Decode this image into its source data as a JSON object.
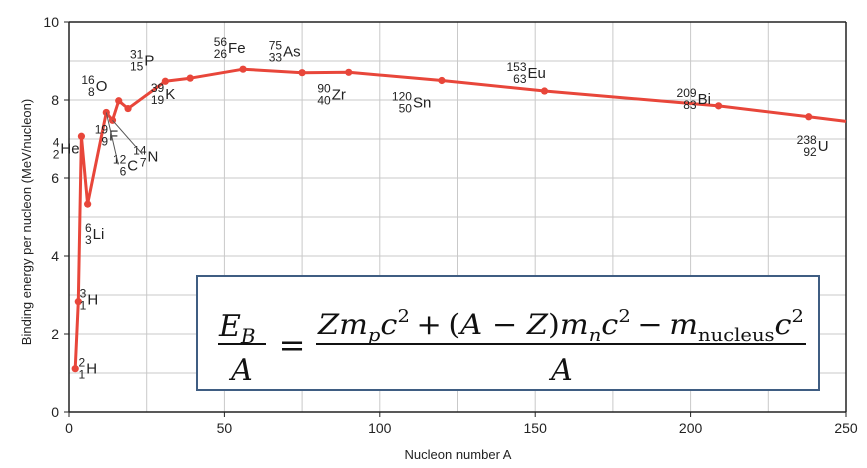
{
  "chart_data": {
    "type": "line",
    "xlabel": "Nucleon number A",
    "ylabel": "Binding energy per nucleon (MeV/nucleon)",
    "xlim": [
      0,
      250
    ],
    "ylim": [
      0,
      10
    ],
    "xticks": [
      "0",
      "50",
      "100",
      "150",
      "200",
      "250"
    ],
    "yticks": [
      "0",
      "2",
      "4",
      "6",
      "8",
      "10"
    ],
    "grid": true,
    "series_color": "#e8463a",
    "points": [
      {
        "x": 2,
        "y": 1.11,
        "A": "2",
        "Z": "1",
        "sym": "H"
      },
      {
        "x": 3,
        "y": 2.83,
        "A": "3",
        "Z": "1",
        "sym": "H"
      },
      {
        "x": 4,
        "y": 7.07,
        "A": "4",
        "Z": "2",
        "sym": "He"
      },
      {
        "x": 6,
        "y": 5.33,
        "A": "6",
        "Z": "3",
        "sym": "Li"
      },
      {
        "x": 12,
        "y": 7.68,
        "A": "12",
        "Z": "6",
        "sym": "C"
      },
      {
        "x": 14,
        "y": 7.48,
        "A": "14",
        "Z": "7",
        "sym": "N"
      },
      {
        "x": 16,
        "y": 7.98,
        "A": "16",
        "Z": "8",
        "sym": "O"
      },
      {
        "x": 19,
        "y": 7.78,
        "A": "19",
        "Z": "9",
        "sym": "F"
      },
      {
        "x": 31,
        "y": 8.48,
        "A": "31",
        "Z": "15",
        "sym": "P"
      },
      {
        "x": 39,
        "y": 8.56,
        "A": "39",
        "Z": "19",
        "sym": "K"
      },
      {
        "x": 56,
        "y": 8.79,
        "A": "56",
        "Z": "26",
        "sym": "Fe"
      },
      {
        "x": 75,
        "y": 8.7,
        "A": "75",
        "Z": "33",
        "sym": "As"
      },
      {
        "x": 90,
        "y": 8.71,
        "A": "90",
        "Z": "40",
        "sym": "Zr"
      },
      {
        "x": 120,
        "y": 8.5,
        "A": "120",
        "Z": "50",
        "sym": "Sn"
      },
      {
        "x": 153,
        "y": 8.23,
        "A": "153",
        "Z": "63",
        "sym": "Eu"
      },
      {
        "x": 209,
        "y": 7.85,
        "A": "209",
        "Z": "83",
        "sym": "Bi"
      },
      {
        "x": 238,
        "y": 7.57,
        "A": "238",
        "Z": "92",
        "sym": "U"
      }
    ],
    "trend_end": {
      "x": 250,
      "y": 7.45
    }
  },
  "formula": {
    "lhs_num": "E",
    "lhs_num_sub": "B",
    "lhs_den": "A",
    "equals": "=",
    "rhs_num": "Zm_p c^2 + (A − Z)m_n c^2 − m_nucleus c^2",
    "rhs_den": "A",
    "parts": {
      "Z": "Z",
      "m": "m",
      "p": "p",
      "c": "c",
      "two": "2",
      "plus": "+",
      "lparen": "(",
      "AminusZ": "A − Z",
      "rparen": ")",
      "n": "n",
      "minus": "−",
      "nucleus": "nucleus"
    }
  }
}
